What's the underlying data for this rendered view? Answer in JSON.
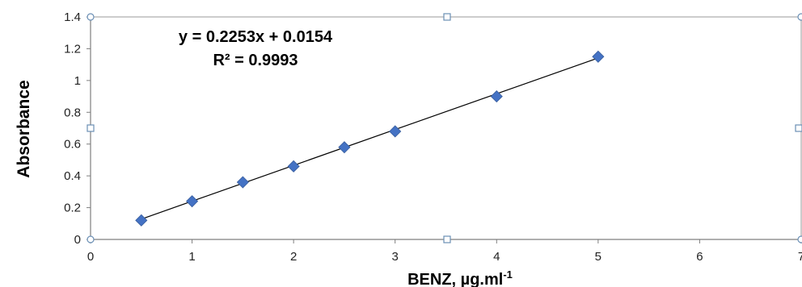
{
  "chart_data": {
    "type": "scatter",
    "title": "",
    "xlabel": "BENZ, µg.ml",
    "xlabel_superscript": "-1",
    "ylabel": "Absorbance",
    "xlim": [
      0,
      7
    ],
    "ylim": [
      0,
      1.4
    ],
    "xticks": [
      "0",
      "1",
      "2",
      "3",
      "4",
      "5",
      "6",
      "7"
    ],
    "yticks": [
      "0",
      "0.2",
      "0.4",
      "0.6",
      "0.8",
      "1",
      "1.2",
      "1.4"
    ],
    "grid": false,
    "legend": "none",
    "series": [
      {
        "marker": "diamond",
        "color": "#4472c4",
        "points": [
          {
            "x": 0.5,
            "y": 0.12
          },
          {
            "x": 1.0,
            "y": 0.24
          },
          {
            "x": 1.5,
            "y": 0.36
          },
          {
            "x": 2.0,
            "y": 0.46
          },
          {
            "x": 2.5,
            "y": 0.58
          },
          {
            "x": 3.0,
            "y": 0.68
          },
          {
            "x": 4.0,
            "y": 0.9
          },
          {
            "x": 5.0,
            "y": 1.15
          }
        ]
      }
    ],
    "trendline": {
      "type": "linear",
      "slope": 0.2253,
      "intercept": 0.0154,
      "x_range": [
        0.5,
        5.0
      ],
      "color": "#000000",
      "equation": "y = 0.2253x + 0.0154",
      "r_squared_label": "R² = 0.9993"
    }
  }
}
